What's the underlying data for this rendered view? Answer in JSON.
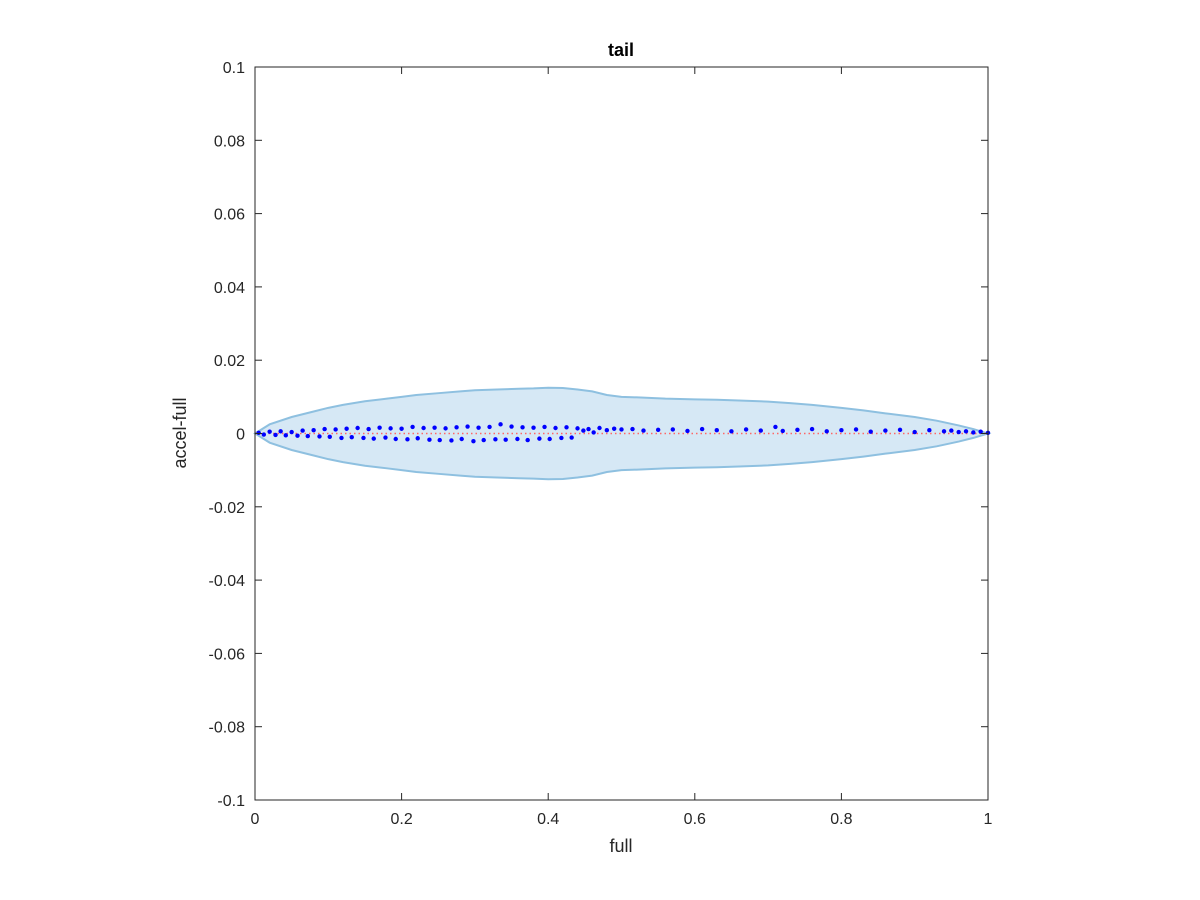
{
  "chart_data": {
    "type": "scatter",
    "title": "tail",
    "xlabel": "full",
    "ylabel": "accel-full",
    "xlim": [
      0,
      1
    ],
    "ylim": [
      -0.1,
      0.1
    ],
    "xticks": [
      "0",
      "0.2",
      "0.4",
      "0.6",
      "0.8",
      "1"
    ],
    "yticks": [
      "0.1",
      "0.08",
      "0.06",
      "0.04",
      "0.02",
      "0",
      "-0.02",
      "-0.04",
      "-0.06",
      "-0.08",
      "-0.1"
    ],
    "xtick_values": [
      0,
      0.2,
      0.4,
      0.6,
      0.8,
      1
    ],
    "ytick_values": [
      0.1,
      0.08,
      0.06,
      0.04,
      0.02,
      0,
      -0.02,
      -0.04,
      -0.06,
      -0.08,
      -0.1
    ],
    "grid": false,
    "zero_line": {
      "y": 0,
      "color": "#ff6666",
      "style": "dotted"
    },
    "band": {
      "fill_color": "#d6e8f5",
      "edge_color": "#8ec0e0",
      "x": [
        0,
        0.02,
        0.05,
        0.08,
        0.1,
        0.12,
        0.15,
        0.18,
        0.2,
        0.22,
        0.25,
        0.28,
        0.3,
        0.33,
        0.36,
        0.38,
        0.4,
        0.42,
        0.44,
        0.46,
        0.48,
        0.5,
        0.53,
        0.56,
        0.6,
        0.63,
        0.66,
        0.7,
        0.73,
        0.76,
        0.8,
        0.83,
        0.86,
        0.9,
        0.93,
        0.96,
        0.98,
        1
      ],
      "upper": [
        0,
        0.0025,
        0.0045,
        0.006,
        0.007,
        0.0078,
        0.0088,
        0.0095,
        0.01,
        0.0105,
        0.011,
        0.0115,
        0.0118,
        0.012,
        0.0122,
        0.0123,
        0.0125,
        0.0124,
        0.012,
        0.0115,
        0.0105,
        0.01,
        0.0098,
        0.0095,
        0.0093,
        0.0092,
        0.009,
        0.0087,
        0.0083,
        0.0078,
        0.007,
        0.0063,
        0.0055,
        0.0045,
        0.0035,
        0.0022,
        0.0012,
        0
      ],
      "lower": [
        0,
        -0.0025,
        -0.0045,
        -0.006,
        -0.007,
        -0.0078,
        -0.0088,
        -0.0095,
        -0.01,
        -0.0105,
        -0.011,
        -0.0115,
        -0.0118,
        -0.012,
        -0.0122,
        -0.0123,
        -0.0125,
        -0.0124,
        -0.012,
        -0.0115,
        -0.0105,
        -0.01,
        -0.0098,
        -0.0095,
        -0.0093,
        -0.0092,
        -0.009,
        -0.0087,
        -0.0083,
        -0.0078,
        -0.007,
        -0.0063,
        -0.0055,
        -0.0045,
        -0.0035,
        -0.0022,
        -0.0012,
        0
      ]
    },
    "series": [
      {
        "color": "#0000ff",
        "x": [
          0.005,
          0.012,
          0.02,
          0.028,
          0.035,
          0.042,
          0.05,
          0.058,
          0.065,
          0.072,
          0.08,
          0.088,
          0.095,
          0.102,
          0.11,
          0.118,
          0.125,
          0.132,
          0.14,
          0.148,
          0.155,
          0.162,
          0.17,
          0.178,
          0.185,
          0.192,
          0.2,
          0.208,
          0.215,
          0.222,
          0.23,
          0.238,
          0.245,
          0.252,
          0.26,
          0.268,
          0.275,
          0.282,
          0.29,
          0.298,
          0.305,
          0.312,
          0.32,
          0.328,
          0.335,
          0.342,
          0.35,
          0.358,
          0.365,
          0.372,
          0.38,
          0.388,
          0.395,
          0.402,
          0.41,
          0.418,
          0.425,
          0.432,
          0.44,
          0.448,
          0.455,
          0.462,
          0.47,
          0.48,
          0.49,
          0.5,
          0.515,
          0.53,
          0.55,
          0.57,
          0.59,
          0.61,
          0.63,
          0.65,
          0.67,
          0.69,
          0.71,
          0.72,
          0.74,
          0.76,
          0.78,
          0.8,
          0.82,
          0.84,
          0.86,
          0.88,
          0.9,
          0.92,
          0.94,
          0.95,
          0.96,
          0.97,
          0.98,
          0.99,
          1.0
        ],
        "y": [
          0.0002,
          -0.0003,
          0.0005,
          -0.0004,
          0.0006,
          -0.0005,
          0.0004,
          -0.0006,
          0.0008,
          -0.0007,
          0.0009,
          -0.0008,
          0.0012,
          -0.0009,
          0.0011,
          -0.0012,
          0.0013,
          -0.001,
          0.0015,
          -0.0012,
          0.0012,
          -0.0014,
          0.0016,
          -0.0011,
          0.0014,
          -0.0015,
          0.0013,
          -0.0016,
          0.0018,
          -0.0013,
          0.0015,
          -0.0017,
          0.0016,
          -0.0018,
          0.0014,
          -0.0019,
          0.0017,
          -0.0015,
          0.0019,
          -0.0021,
          0.0016,
          -0.0018,
          0.0018,
          -0.0016,
          0.0025,
          -0.0017,
          0.0019,
          -0.0015,
          0.0017,
          -0.0018,
          0.0016,
          -0.0014,
          0.0018,
          -0.0015,
          0.0015,
          -0.0012,
          0.0017,
          -0.0011,
          0.0014,
          0.0008,
          0.0012,
          0.0003,
          0.0015,
          0.0009,
          0.0013,
          0.0011,
          0.0012,
          0.0008,
          0.001,
          0.0011,
          0.0007,
          0.0012,
          0.0009,
          0.0006,
          0.0011,
          0.0008,
          0.0018,
          0.0007,
          0.001,
          0.0012,
          0.0006,
          0.0009,
          0.0011,
          0.0005,
          0.0008,
          0.001,
          0.0004,
          0.0009,
          0.0006,
          0.0008,
          0.0004,
          0.0006,
          0.0003,
          0.0005,
          0.0002
        ]
      }
    ]
  }
}
